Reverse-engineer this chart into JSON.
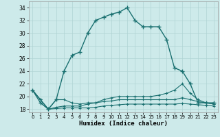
{
  "xlabel": "Humidex (Indice chaleur)",
  "background_color": "#cdeaea",
  "grid_color": "#b0d4d4",
  "line_color": "#1a7070",
  "xmin": -0.5,
  "xmax": 23.5,
  "ymin": 17.5,
  "ymax": 35,
  "yticks": [
    18,
    20,
    22,
    24,
    26,
    28,
    30,
    32,
    34
  ],
  "xticks": [
    0,
    1,
    2,
    3,
    4,
    5,
    6,
    7,
    8,
    9,
    10,
    11,
    12,
    13,
    14,
    15,
    16,
    17,
    18,
    19,
    20,
    21,
    22,
    23
  ],
  "series1": [
    21,
    19,
    18,
    19.5,
    24,
    26.5,
    27,
    30,
    32,
    32.5,
    33,
    33.3,
    34,
    32,
    31,
    31,
    31,
    29,
    24.5,
    24,
    22,
    19,
    19,
    19
  ],
  "series2": [
    21,
    19.5,
    18,
    19.5,
    19.5,
    19.0,
    18.8,
    19.0,
    19.0,
    19.5,
    19.8,
    20.0,
    20.0,
    20.0,
    20.0,
    20.0,
    20.2,
    20.5,
    21.0,
    22.0,
    20.5,
    19.5,
    19.0,
    18.8
  ],
  "series3": [
    21,
    19.5,
    18,
    18.3,
    18.5,
    18.5,
    18.5,
    18.8,
    19.0,
    19.2,
    19.3,
    19.5,
    19.5,
    19.5,
    19.5,
    19.5,
    19.5,
    19.5,
    19.5,
    19.8,
    19.5,
    19.2,
    19.0,
    18.8
  ],
  "series4": [
    21,
    19.5,
    18,
    18.1,
    18.2,
    18.2,
    18.2,
    18.2,
    18.3,
    18.5,
    18.6,
    18.7,
    18.8,
    18.8,
    18.8,
    18.8,
    18.8,
    18.8,
    18.8,
    18.9,
    18.8,
    18.7,
    18.6,
    18.5
  ]
}
